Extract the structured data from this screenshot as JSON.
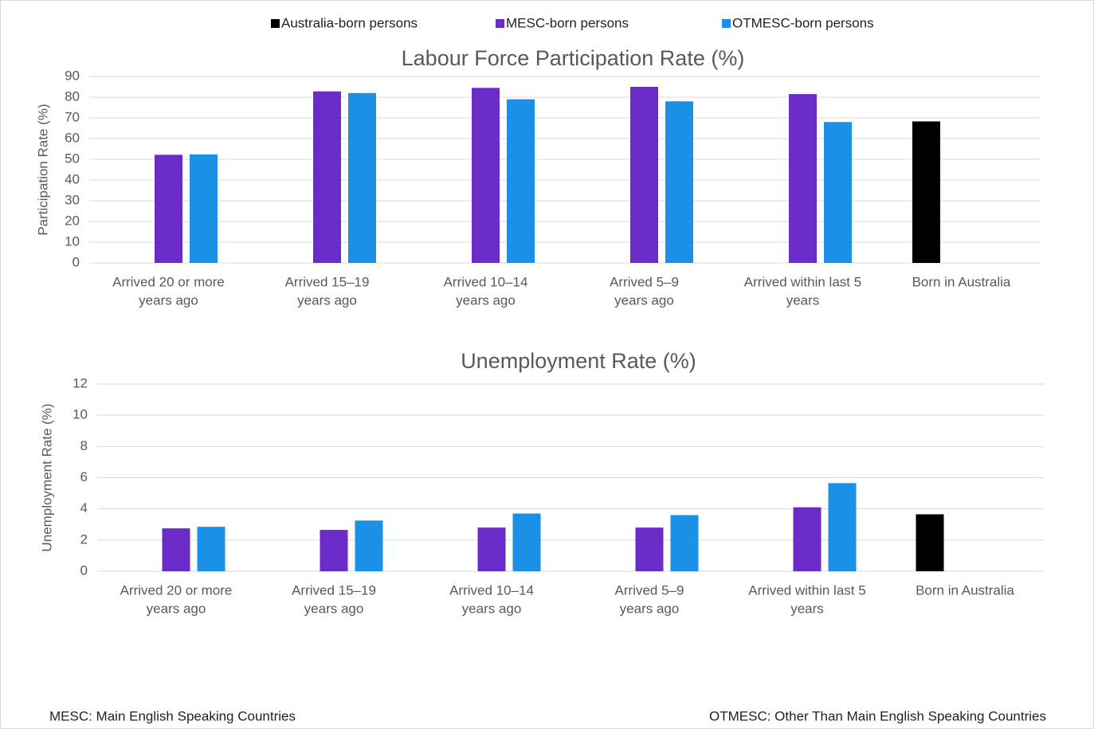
{
  "chart_data": [
    {
      "type": "bar",
      "title": "Labour Force Participation Rate (%)",
      "y_label": "Participation Rate (%)",
      "categories": [
        [
          "Arrived 20 or more",
          "years ago"
        ],
        [
          "Arrived 15–19",
          "years ago"
        ],
        [
          "Arrived 10–14",
          "years ago"
        ],
        [
          "Arrived 5–9",
          "years ago"
        ],
        [
          "Arrived within last 5",
          "years"
        ],
        [
          "Born in Australia"
        ]
      ],
      "series": [
        {
          "name": "Australia-born persons",
          "color": "#000000",
          "values": [
            null,
            null,
            null,
            null,
            null,
            68.3
          ]
        },
        {
          "name": "MESC-born persons",
          "color": "#6a2bc8",
          "values": [
            52.2,
            82.8,
            84.5,
            85.0,
            81.5,
            null
          ]
        },
        {
          "name": "OTMESC-born persons",
          "color": "#1a90e6",
          "values": [
            52.4,
            82.0,
            79.0,
            78.0,
            68.0,
            null
          ]
        }
      ],
      "ylim": [
        0,
        90
      ],
      "yticks": [
        0,
        10,
        20,
        30,
        40,
        50,
        60,
        70,
        80,
        90
      ],
      "grid": true,
      "legend": "top"
    },
    {
      "type": "bar",
      "title": "Unemployment Rate (%)",
      "y_label": "Unemployment Rate (%)",
      "categories": [
        [
          "Arrived 20 or more",
          "years ago"
        ],
        [
          "Arrived 15–19",
          "years ago"
        ],
        [
          "Arrived 10–14",
          "years ago"
        ],
        [
          "Arrived 5–9",
          "years ago"
        ],
        [
          "Arrived within last 5",
          "years"
        ],
        [
          "Born in Australia"
        ]
      ],
      "series": [
        {
          "name": "Australia-born persons",
          "color": "#000000",
          "values": [
            null,
            null,
            null,
            null,
            null,
            3.65
          ]
        },
        {
          "name": "MESC-born persons",
          "color": "#6a2bc8",
          "values": [
            2.75,
            2.65,
            2.8,
            2.8,
            4.1,
            null
          ]
        },
        {
          "name": "OTMESC-born persons",
          "color": "#1a90e6",
          "values": [
            2.85,
            3.25,
            3.7,
            3.6,
            5.65,
            null
          ]
        }
      ],
      "ylim": [
        0,
        12
      ],
      "yticks": [
        0,
        2,
        4,
        6,
        8,
        10,
        12
      ],
      "grid": true
    }
  ],
  "footnotes": [
    "MESC: Main English Speaking Countries",
    "OTMESC: Other Than Main English Speaking Countries"
  ]
}
